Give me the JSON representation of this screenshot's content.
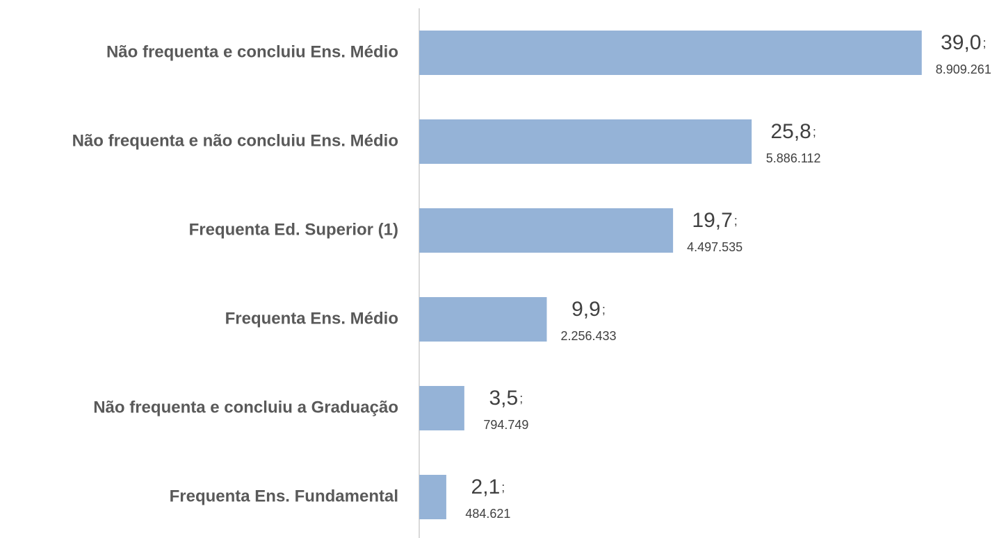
{
  "chart_data": {
    "type": "barh",
    "categories": [
      "Não frequenta e concluiu Ens. Médio",
      "Não frequenta e não concluiu Ens. Médio",
      "Frequenta Ed. Superior (1)",
      "Frequenta Ens. Médio",
      "Não frequenta e concluiu a Graduação",
      "Frequenta Ens. Fundamental"
    ],
    "values": [
      39.0,
      25.8,
      19.7,
      9.9,
      3.5,
      2.1
    ],
    "value_labels": [
      "39,0",
      "25,8",
      "19,7",
      "9,9",
      "3,5",
      "2,1"
    ],
    "separator": ";",
    "counts": [
      8909261,
      5886112,
      4497535,
      2256433,
      794749,
      484621
    ],
    "count_labels": [
      "8.909.261",
      "5.886.112",
      "4.497.535",
      "2.256.433",
      "794.749",
      "484.621"
    ],
    "color": "#95b3d7",
    "xlim": [
      0,
      45
    ]
  }
}
